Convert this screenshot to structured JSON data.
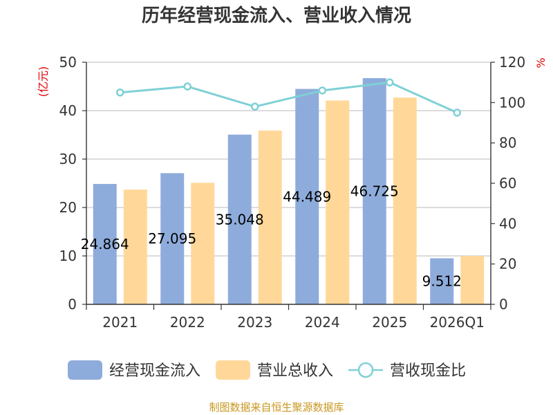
{
  "chart_data": {
    "type": "bar",
    "title": "历年经营现金流入、营业收入情况",
    "categories": [
      "2021",
      "2022",
      "2023",
      "2024",
      "2025",
      "2026Q1"
    ],
    "series": [
      {
        "name": "经营现金流入",
        "kind": "bar",
        "axis": "left",
        "color": "#8eacdb",
        "values": [
          24.864,
          27.095,
          35.048,
          44.489,
          46.725,
          9.512
        ]
      },
      {
        "name": "营业总收入",
        "kind": "bar",
        "axis": "left",
        "color": "#ffd899",
        "values": [
          23.7,
          25.1,
          35.9,
          42.1,
          42.7,
          10.0
        ]
      },
      {
        "name": "营收现金比",
        "kind": "line",
        "axis": "right",
        "color": "#7fd0d6",
        "values": [
          105,
          108,
          98,
          106,
          110,
          95
        ]
      }
    ],
    "data_labels": [
      "24.864",
      "27.095",
      "35.048",
      "44.489",
      "46.725",
      "9.512"
    ],
    "y_left": {
      "unit": "(亿元)",
      "ylim": [
        0,
        50
      ],
      "ticks": [
        "0",
        "10",
        "20",
        "30",
        "40",
        "50"
      ]
    },
    "y_right": {
      "unit": "%",
      "ylim": [
        0,
        120
      ],
      "ticks": [
        "0",
        "20",
        "40",
        "60",
        "80",
        "100",
        "120"
      ]
    },
    "grid": true,
    "legend_position": "bottom"
  },
  "source_text": "制图数据来自恒生聚源数据库"
}
